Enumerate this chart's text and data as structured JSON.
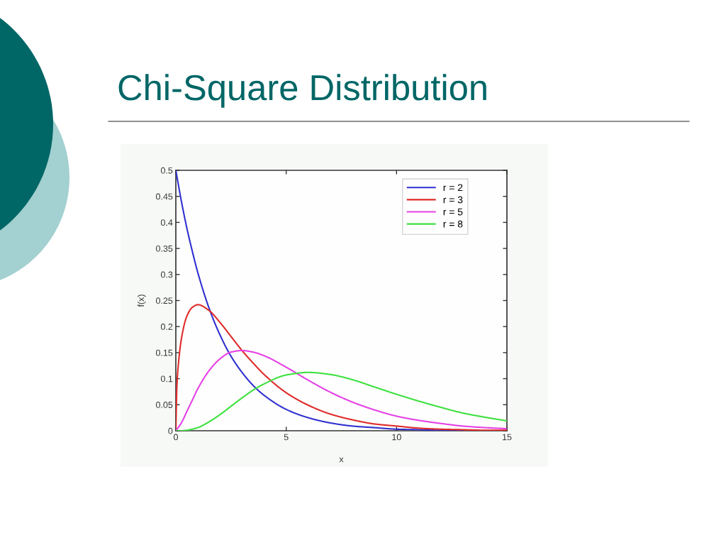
{
  "chart_data": {
    "type": "line",
    "title": "Chi-Square Distribution",
    "xlabel": "x",
    "ylabel": "f(x)",
    "x": [
      0,
      0.25,
      0.5,
      0.75,
      1,
      1.5,
      2,
      2.5,
      3,
      3.5,
      4,
      5,
      6,
      7,
      8,
      9,
      10,
      11,
      12,
      13,
      14,
      15
    ],
    "series": [
      {
        "name": "r = 2",
        "color": "#3030d0",
        "values": [
          0.5,
          0.441,
          0.389,
          0.344,
          0.303,
          0.236,
          0.184,
          0.143,
          0.112,
          0.087,
          0.068,
          0.041,
          0.025,
          0.015,
          0.009,
          0.006,
          0.003,
          0.002,
          0.001,
          0.001,
          null,
          null
        ]
      },
      {
        "name": "r = 3",
        "color": "#e02a2a",
        "x": [
          0,
          0.05,
          0.1,
          0.25,
          0.5,
          0.75,
          1,
          1.5,
          2,
          2.5,
          3,
          3.5,
          4,
          5,
          6,
          7,
          8,
          9,
          10,
          11,
          12,
          13,
          14,
          15
        ],
        "values": [
          0,
          0.087,
          0.12,
          0.176,
          0.22,
          0.237,
          0.242,
          0.231,
          0.208,
          0.181,
          0.154,
          0.13,
          0.108,
          0.073,
          0.049,
          0.032,
          0.021,
          0.013,
          0.009,
          0.005,
          0.003,
          0.002,
          0.001,
          0.001
        ]
      },
      {
        "name": "r = 5",
        "color": "#e640e6",
        "values": [
          0,
          0.015,
          0.037,
          0.059,
          0.081,
          0.115,
          0.138,
          0.151,
          0.154,
          0.151,
          0.144,
          0.122,
          0.097,
          0.074,
          0.055,
          0.04,
          0.028,
          0.02,
          0.014,
          0.009,
          0.006,
          0.004
        ]
      },
      {
        "name": "r = 8",
        "color": "#3ee03e",
        "values": [
          0,
          0.0,
          0.001,
          0.003,
          0.006,
          0.017,
          0.031,
          0.047,
          0.063,
          0.078,
          0.09,
          0.107,
          0.112,
          0.108,
          0.098,
          0.084,
          0.07,
          0.057,
          0.045,
          0.034,
          0.026,
          0.019
        ]
      }
    ],
    "xlim": [
      0,
      15
    ],
    "ylim": [
      0,
      0.5
    ],
    "xticks": [
      0,
      5,
      10,
      15
    ],
    "yticks": [
      0,
      0.05,
      0.1,
      0.15,
      0.2,
      0.25,
      0.3,
      0.35,
      0.4,
      0.45,
      0.5
    ],
    "grid": false,
    "legend": "top right",
    "line_style": "solid"
  }
}
